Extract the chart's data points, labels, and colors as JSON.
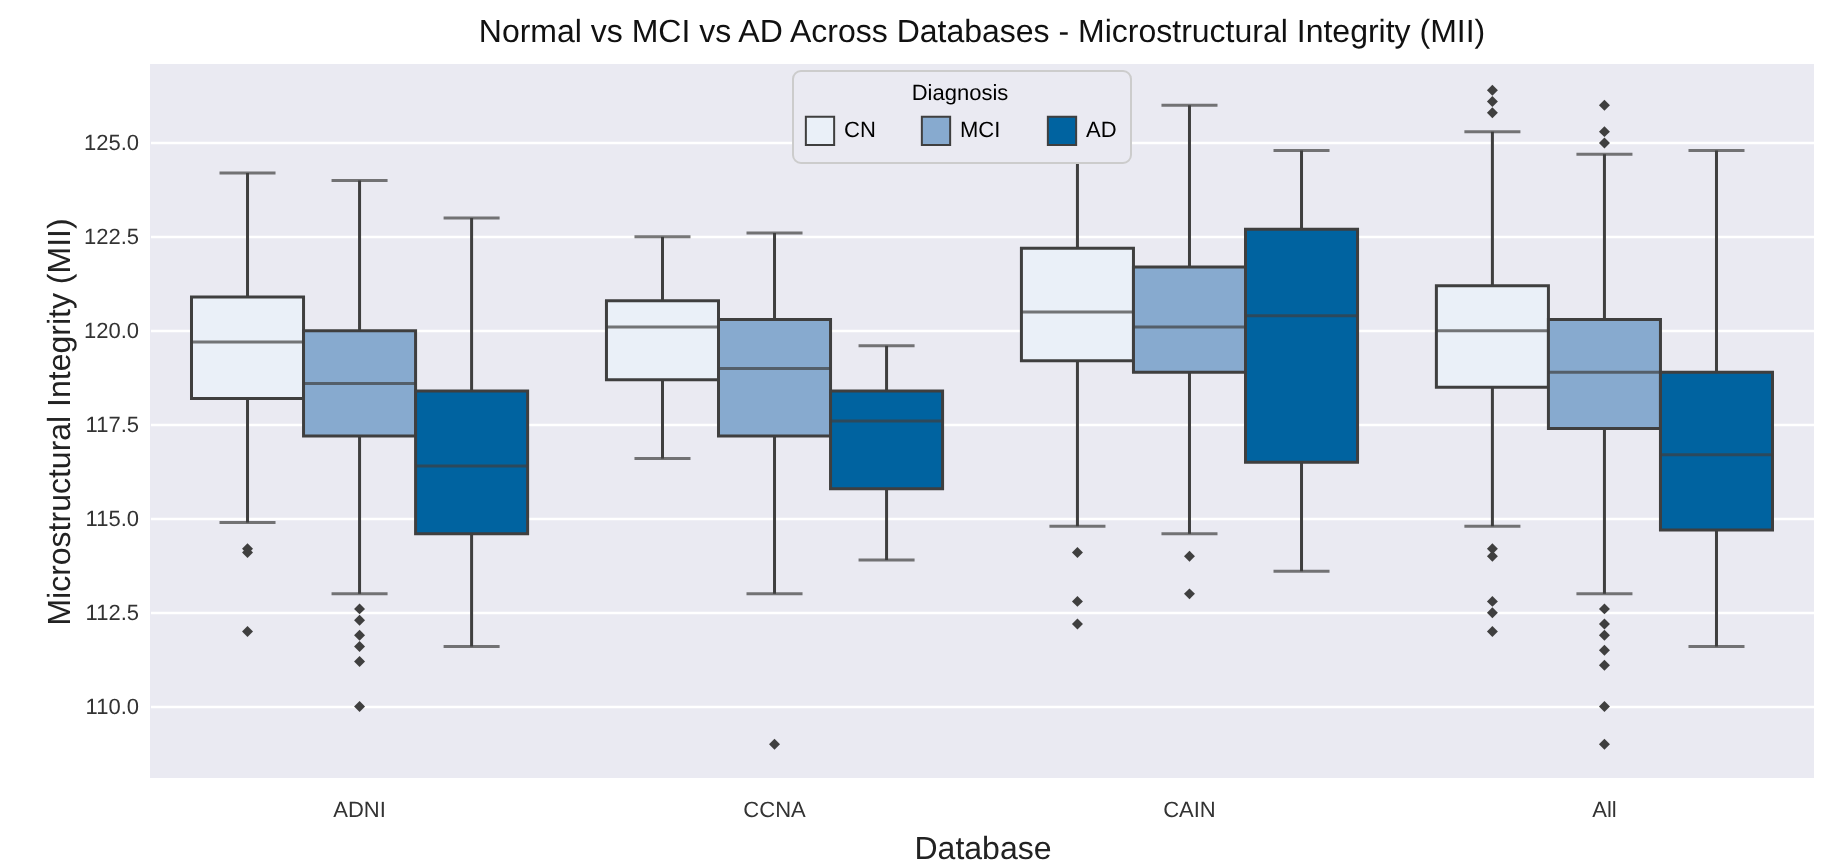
{
  "chart_data": {
    "type": "box",
    "title": "Normal vs MCI vs AD Across Databases - Microstructural Integrity (MII)",
    "xlabel": "Database",
    "ylabel": "Microstructural Integrity (MII)",
    "legend_title": "Diagnosis",
    "legend": "top",
    "grid": "y",
    "marker": "diamond",
    "categories": [
      "ADNI",
      "CCNA",
      "CAIN",
      "All"
    ],
    "ylim": [
      108.1,
      127.1
    ],
    "yticks": [
      {
        "value": 110,
        "label": "110.0"
      },
      {
        "value": 112.5,
        "label": "112.5"
      },
      {
        "value": 115,
        "label": "115.0"
      },
      {
        "value": 117.5,
        "label": "117.5"
      },
      {
        "value": 120,
        "label": "120.0"
      },
      {
        "value": 122.5,
        "label": "122.5"
      },
      {
        "value": 125,
        "label": "125.0"
      }
    ],
    "series": [
      {
        "name": "CN",
        "color": "#eaf0f8",
        "boxes": [
          {
            "low": 114.9,
            "q1": 118.2,
            "median": 119.7,
            "q3": 120.9,
            "high": 124.2,
            "outliers": [
              114.2,
              114.1,
              112.0
            ]
          },
          {
            "low": 116.6,
            "q1": 118.7,
            "median": 120.1,
            "q3": 120.8,
            "high": 122.5
          },
          {
            "low": 114.8,
            "q1": 119.2,
            "median": 120.5,
            "q3": 122.2,
            "high": 126.3,
            "outliers": [
              114.1,
              112.8,
              112.2
            ]
          },
          {
            "low": 114.8,
            "q1": 118.5,
            "median": 120.0,
            "q3": 121.2,
            "high": 125.3,
            "outliers": [
              126.4,
              126.1,
              125.8,
              114.2,
              114.0,
              112.8,
              112.5,
              112.0
            ]
          }
        ]
      },
      {
        "name": "MCI",
        "color": "#87aacf",
        "boxes": [
          {
            "low": 113.0,
            "q1": 117.2,
            "median": 118.6,
            "q3": 120.0,
            "high": 124.0,
            "outliers": [
              112.6,
              112.3,
              111.9,
              111.6,
              111.2,
              110.0
            ]
          },
          {
            "low": 113.0,
            "q1": 117.2,
            "median": 119.0,
            "q3": 120.3,
            "high": 122.6,
            "outliers": [
              109.0
            ]
          },
          {
            "low": 114.6,
            "q1": 118.9,
            "median": 120.1,
            "q3": 121.7,
            "high": 126.0,
            "outliers": [
              114.0,
              113.0
            ]
          },
          {
            "low": 113.0,
            "q1": 117.4,
            "median": 118.9,
            "q3": 120.3,
            "high": 124.7,
            "outliers": [
              126.0,
              125.3,
              125.0,
              112.6,
              112.2,
              111.9,
              111.5,
              111.1,
              110.0,
              109.0
            ]
          }
        ]
      },
      {
        "name": "AD",
        "color": "#0063a0",
        "boxes": [
          {
            "low": 111.6,
            "q1": 114.6,
            "median": 116.4,
            "q3": 118.4,
            "high": 123.0
          },
          {
            "low": 113.9,
            "q1": 115.8,
            "median": 117.6,
            "q3": 118.4,
            "high": 119.6
          },
          {
            "low": 113.6,
            "q1": 116.5,
            "median": 120.4,
            "q3": 122.7,
            "high": 124.8
          },
          {
            "low": 111.6,
            "q1": 114.7,
            "median": 116.7,
            "q3": 118.9,
            "high": 124.8
          }
        ]
      }
    ]
  }
}
